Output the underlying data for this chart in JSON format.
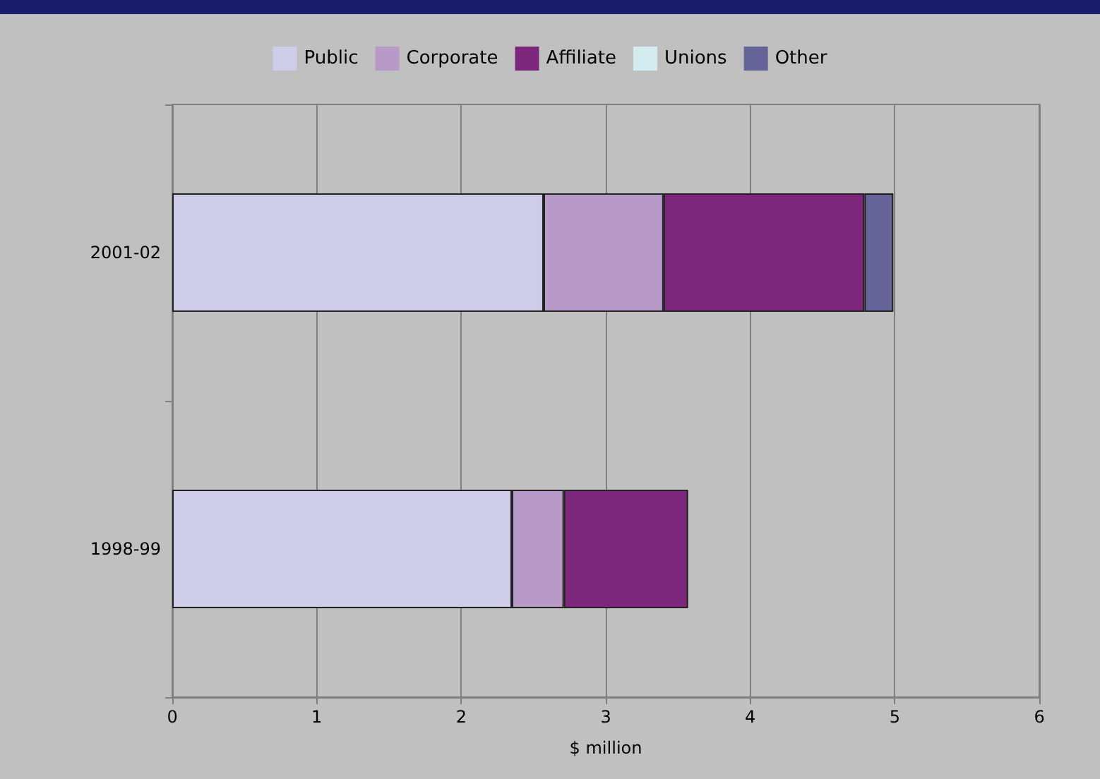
{
  "chart_data": {
    "type": "bar",
    "orientation": "horizontal",
    "stacked": true,
    "xlabel": "$ million",
    "categories": [
      "2001-02",
      "1998-99"
    ],
    "series": [
      {
        "name": "Public",
        "color": "#cecce8",
        "values": [
          2.57,
          2.35
        ]
      },
      {
        "name": "Corporate",
        "color": "#b89ac8",
        "values": [
          0.83,
          0.36
        ]
      },
      {
        "name": "Affiliate",
        "color": "#7c267c",
        "values": [
          1.39,
          0.86
        ]
      },
      {
        "name": "Unions",
        "color": "#d4ecf0",
        "values": [
          null,
          0
        ]
      },
      {
        "name": "Other",
        "color": "#646498",
        "values": [
          0.2,
          0
        ]
      }
    ],
    "xlim": [
      0,
      6
    ],
    "xticks": [
      0,
      1,
      2,
      3,
      4,
      5,
      6
    ],
    "grid": "x",
    "legend": "top"
  }
}
